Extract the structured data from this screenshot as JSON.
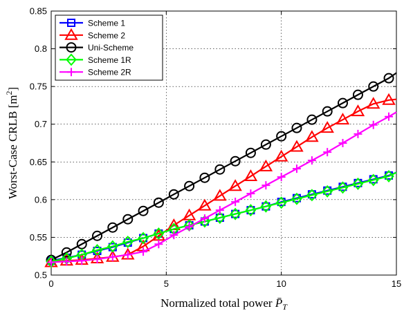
{
  "chart_data": {
    "type": "line",
    "xlabel": "Normalized total power",
    "xlabel_math": "P̄",
    "xlabel_sub": "T",
    "ylabel": "Worst-Case CRLB [m",
    "ylabel_sup": "2",
    "ylabel_close": "]",
    "xlim": [
      0,
      15
    ],
    "ylim": [
      0.5,
      0.85
    ],
    "xticks": [
      "0",
      "5",
      "10",
      "15"
    ],
    "yticks": [
      "0.5",
      "0.55",
      "0.6",
      "0.65",
      "0.7",
      "0.75",
      "0.8",
      "0.85"
    ],
    "grid": true,
    "legend_position": "top-left",
    "series": [
      {
        "name": "Scheme 1",
        "color": "#0000ff",
        "marker": "square",
        "x": [
          0,
          0.67,
          1.33,
          2,
          2.67,
          3.33,
          4,
          4.67,
          5.33,
          6,
          6.67,
          7.33,
          8,
          8.67,
          9.33,
          10,
          10.67,
          11.33,
          12,
          12.67,
          13.33,
          14,
          14.67,
          15
        ],
        "y": [
          0.519,
          0.523,
          0.527,
          0.532,
          0.537,
          0.543,
          0.549,
          0.555,
          0.561,
          0.566,
          0.571,
          0.576,
          0.581,
          0.586,
          0.591,
          0.597,
          0.602,
          0.607,
          0.612,
          0.617,
          0.622,
          0.627,
          0.632,
          0.636
        ]
      },
      {
        "name": "Scheme 2",
        "color": "#ff0000",
        "marker": "triangle",
        "x": [
          0,
          0.67,
          1.33,
          2,
          2.67,
          3.33,
          4,
          4.67,
          5.33,
          6,
          6.67,
          7.33,
          8,
          8.67,
          9.33,
          10,
          10.67,
          11.33,
          12,
          12.67,
          13.33,
          14,
          14.67,
          15
        ],
        "y": [
          0.517,
          0.519,
          0.52,
          0.522,
          0.524,
          0.527,
          0.538,
          0.552,
          0.566,
          0.579,
          0.592,
          0.605,
          0.618,
          0.631,
          0.644,
          0.657,
          0.67,
          0.683,
          0.695,
          0.706,
          0.717,
          0.727,
          0.732,
          0.733
        ]
      },
      {
        "name": "Uni-Scheme",
        "color": "#000000",
        "marker": "circle",
        "x": [
          0,
          0.67,
          1.33,
          2,
          2.67,
          3.33,
          4,
          4.67,
          5.33,
          6,
          6.67,
          7.33,
          8,
          8.67,
          9.33,
          10,
          10.67,
          11.33,
          12,
          12.67,
          13.33,
          14,
          14.67,
          15
        ],
        "y": [
          0.52,
          0.53,
          0.541,
          0.552,
          0.563,
          0.574,
          0.585,
          0.596,
          0.607,
          0.618,
          0.629,
          0.64,
          0.651,
          0.662,
          0.673,
          0.684,
          0.695,
          0.706,
          0.717,
          0.728,
          0.739,
          0.75,
          0.761,
          0.768
        ]
      },
      {
        "name": "Scheme 1R",
        "color": "#00ff00",
        "marker": "diamond",
        "x": [
          0,
          0.67,
          1.33,
          2,
          2.67,
          3.33,
          4,
          4.67,
          5.33,
          6,
          6.67,
          7.33,
          8,
          8.67,
          9.33,
          10,
          10.67,
          11.33,
          12,
          12.67,
          13.33,
          14,
          14.67,
          15
        ],
        "y": [
          0.518,
          0.522,
          0.527,
          0.533,
          0.538,
          0.544,
          0.549,
          0.555,
          0.561,
          0.566,
          0.571,
          0.576,
          0.581,
          0.586,
          0.591,
          0.596,
          0.601,
          0.606,
          0.611,
          0.616,
          0.621,
          0.626,
          0.631,
          0.636
        ]
      },
      {
        "name": "Scheme 2R",
        "color": "#ff00ff",
        "marker": "plus",
        "x": [
          0,
          0.67,
          1.33,
          2,
          2.67,
          3.33,
          4,
          4.67,
          5.33,
          6,
          6.67,
          7.33,
          8,
          8.67,
          9.33,
          10,
          10.67,
          11.33,
          12,
          12.67,
          13.33,
          14,
          14.67,
          15
        ],
        "y": [
          0.517,
          0.518,
          0.519,
          0.521,
          0.524,
          0.527,
          0.531,
          0.541,
          0.553,
          0.564,
          0.575,
          0.586,
          0.597,
          0.608,
          0.619,
          0.63,
          0.641,
          0.652,
          0.663,
          0.675,
          0.687,
          0.699,
          0.71,
          0.716
        ]
      }
    ]
  }
}
